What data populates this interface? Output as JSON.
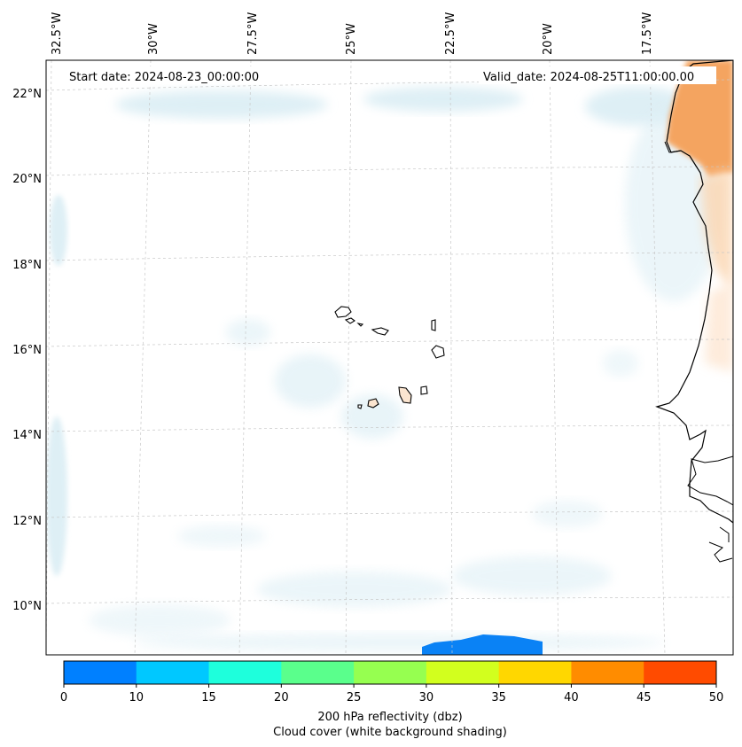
{
  "map": {
    "start_label": "Start date: 2024-08-23_00:00:00",
    "valid_label": "Valid_date: 2024-08-25T11:00:00.00",
    "lon_labels": [
      "32.5°W",
      "30°W",
      "27.5°W",
      "25°W",
      "22.5°W",
      "20°W",
      "17.5°W"
    ],
    "lat_labels": [
      "22°N",
      "20°N",
      "18°N",
      "16°N",
      "14°N",
      "12°N",
      "10°N"
    ],
    "islands": [
      "Santo Antão",
      "São Vicente",
      "Santa Luzia",
      "São Nicolau",
      "Sal",
      "Boa Vista",
      "Maio",
      "Santiago",
      "Fogo",
      "Brava"
    ],
    "land_color": "#ffffff",
    "coast_color": "#000000"
  },
  "colorbar": {
    "colors": [
      "#0080ff",
      "#00c8ff",
      "#1effdc",
      "#5aff8c",
      "#96ff50",
      "#d2ff1e",
      "#ffd700",
      "#ff8c00",
      "#ff4b00"
    ],
    "tick_labels": [
      "0",
      "10",
      "15",
      "20",
      "25",
      "30",
      "35",
      "40",
      "45",
      "50"
    ],
    "label_line1": "200 hPa reflectivity (dbz)",
    "label_line2": "Cloud cover (white background shading)"
  }
}
